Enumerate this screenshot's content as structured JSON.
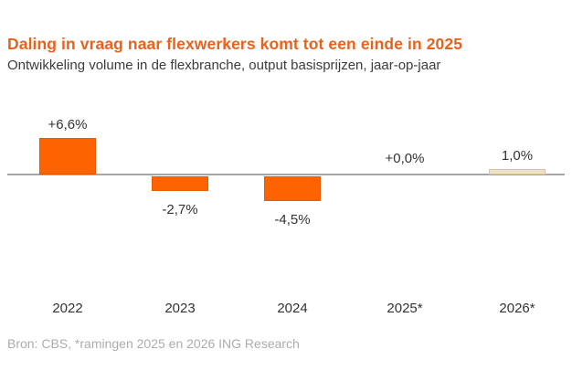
{
  "header": {
    "title": "Daling in vraag naar flexwerkers komt tot een einde in 2025",
    "subtitle": "Ontwikkeling volume in de flexbranche, output basisprijzen, jaar-op-jaar"
  },
  "chart_data": {
    "type": "bar",
    "categories": [
      "2022",
      "2023",
      "2024",
      "2025*",
      "2026*"
    ],
    "values": [
      6.6,
      -2.7,
      -4.5,
      0.0,
      1.0
    ],
    "value_labels": [
      "+6,6%",
      "-2,7%",
      "-4,5%",
      "+0,0%",
      "1,0%"
    ],
    "bar_colors": [
      "#ff6200",
      "#ff6200",
      "#ff6200",
      "#ff6200",
      "#f0e1c6"
    ],
    "bar_borders": [
      "#e75b00",
      "#e75b00",
      "#e75b00",
      "#e75b00",
      "#dcc69e"
    ],
    "title": "Daling in vraag naar flexwerkers komt tot een einde in 2025",
    "subtitle": "Ontwikkeling volume in de flexbranche, output basisprijzen, jaar-op-jaar",
    "xlabel": "",
    "ylabel": "",
    "ylim": [
      -6,
      8
    ],
    "grid": false,
    "legend": false,
    "baseline": 0
  },
  "footer": {
    "source": "Bron: CBS, *ramingen 2025 en 2026 ING Research"
  },
  "colors": {
    "accent_orange": "#ff6200",
    "title_orange": "#e8621d",
    "forecast_beige": "#f0e1c6",
    "axis_gray": "#a6a6a6",
    "text_dark": "#333333",
    "source_gray": "#acacac"
  }
}
